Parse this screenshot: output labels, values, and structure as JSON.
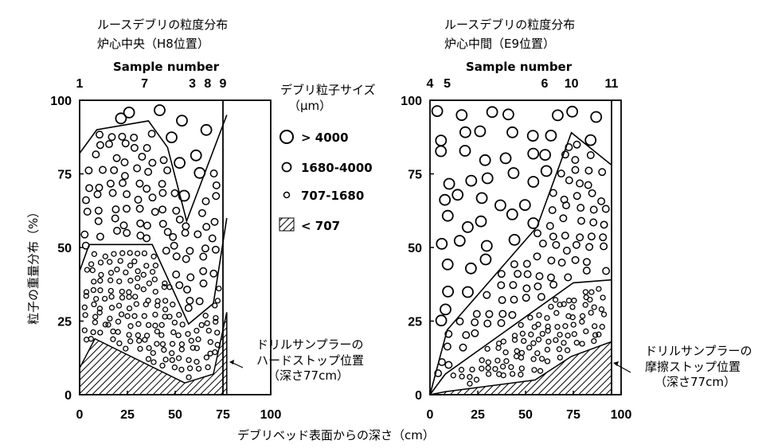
{
  "colors": {
    "ink": "#000000",
    "paper": "#ffffff"
  },
  "figure": {
    "shared_xlabel": "デブリベッド表面からの深さ（cm）",
    "shared_ylabel": "粒子の重量分布（%）",
    "legend": {
      "title_line1": "デブリ粒子サイズ",
      "title_line2": "（μm）",
      "items": [
        {
          "label": "> 4000",
          "icon": "large-circle"
        },
        {
          "label": "1680-4000",
          "icon": "medium-circle"
        },
        {
          "label": "707-1680",
          "icon": "small-circle"
        },
        {
          "label": "< 707",
          "icon": "hatch"
        }
      ]
    }
  },
  "chart_data": [
    {
      "type": "area",
      "title_line1": "ルースデブリの粒度分布",
      "title_line2": "炉心中央（H8位置）",
      "top_axis_title": "Sample number",
      "sample_numbers": [
        {
          "label": "1",
          "depth": 0
        },
        {
          "label": "7",
          "depth": 34
        },
        {
          "label": "3",
          "depth": 59
        },
        {
          "label": "8",
          "depth": 67
        },
        {
          "label": "9",
          "depth": 75
        }
      ],
      "xlim": [
        0,
        100
      ],
      "ylim": [
        0,
        100
      ],
      "xticks": [
        0,
        25,
        50,
        75,
        100
      ],
      "yticks": [
        0,
        25,
        50,
        75,
        100
      ],
      "series": [
        {
          "key": "lt707",
          "x": [
            0,
            8,
            55,
            70,
            77
          ],
          "y": [
            9,
            19,
            4,
            7,
            28
          ]
        },
        {
          "key": "upto1680",
          "x": [
            0,
            5,
            18,
            38,
            57,
            70,
            77
          ],
          "y": [
            42,
            51,
            51,
            51,
            24,
            31,
            60
          ]
        },
        {
          "key": "upto4000",
          "x": [
            0,
            9,
            36,
            46,
            56,
            77
          ],
          "y": [
            82,
            90,
            93,
            84,
            59,
            95
          ]
        }
      ],
      "annotation_line1": "ドリルサンプラーの",
      "annotation_line2": "ハードストップ位置",
      "annotation_line3": "（深さ77cm）"
    },
    {
      "type": "area",
      "title_line1": "ルースデブリの粒度分布",
      "title_line2": "炉心中間（E9位置）",
      "top_axis_title": "Sample number",
      "sample_numbers": [
        {
          "label": "4",
          "depth": 0
        },
        {
          "label": "5",
          "depth": 9
        },
        {
          "label": "6",
          "depth": 60
        },
        {
          "label": "10",
          "depth": 74
        },
        {
          "label": "11",
          "depth": 95
        }
      ],
      "xlim": [
        0,
        100
      ],
      "ylim": [
        0,
        100
      ],
      "xticks": [
        0,
        25,
        50,
        75,
        100
      ],
      "yticks": [
        0,
        25,
        50,
        75,
        100
      ],
      "series": [
        {
          "key": "lt707",
          "x": [
            0,
            8,
            55,
            74,
            95
          ],
          "y": [
            0,
            1,
            5,
            13,
            18
          ]
        },
        {
          "key": "upto1680",
          "x": [
            0,
            8,
            75,
            95
          ],
          "y": [
            0,
            7,
            38,
            39
          ]
        },
        {
          "key": "upto4000",
          "x": [
            0,
            9,
            56,
            74,
            95
          ],
          "y": [
            0,
            22,
            57,
            89,
            78
          ]
        }
      ],
      "annotation_line1": "ドリルサンプラーの",
      "annotation_line2": "摩擦ストップ位置",
      "annotation_line3": "（深さ77cm）"
    }
  ]
}
